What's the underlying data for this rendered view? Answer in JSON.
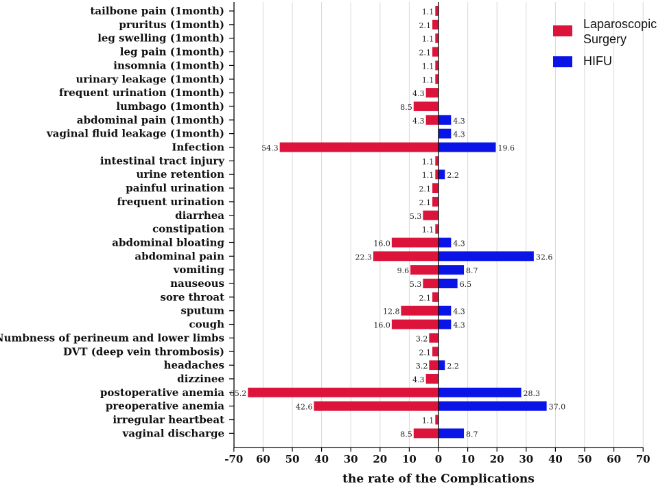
{
  "chart_data": {
    "type": "bar",
    "orientation": "horizontal-diverging",
    "title": "",
    "xlabel": "the rate of the Complications",
    "ylabel": "",
    "xlim": [
      -70,
      70
    ],
    "x_tick_values": [
      -70,
      -60,
      -50,
      -40,
      -30,
      -20,
      -10,
      0,
      10,
      20,
      30,
      40,
      50,
      60,
      70
    ],
    "x_tick_labels": [
      "-70",
      "60",
      "50",
      "40",
      "30",
      "20",
      "10",
      "0",
      "10",
      "20",
      "30",
      "40",
      "50",
      "60",
      "70"
    ],
    "grid": "vertical",
    "legend_position": "top-right",
    "categories": [
      "tailbone pain (1month)",
      "pruritus (1month)",
      "leg swelling (1month)",
      "leg pain (1month)",
      "insomnia (1month)",
      "urinary leakage (1month)",
      "frequent urination (1month)",
      "lumbago (1month)",
      "abdominal pain  (1month)",
      "vaginal fluid leakage (1month)",
      "Infection",
      "intestinal tract injury",
      "urine retention",
      "painful urination",
      "frequent urination",
      "diarrhea",
      "constipation",
      "abdominal bloating",
      "abdominal pain",
      "vomiting",
      "nauseous",
      "sore throat",
      "sputum",
      "cough",
      "Numbness of perineum and lower limbs",
      "DVT (deep vein thrombosis)",
      "headaches",
      "dizzinee",
      "postoperative anemia",
      "preoperative anemia",
      "irregular heartbeat",
      "vaginal discharge"
    ],
    "series": [
      {
        "name": "Laparoscopic Surgery",
        "legend_lines": [
          "Laparoscopic",
          "Surgery"
        ],
        "color": "#dc143c",
        "side": "left",
        "values": [
          1.1,
          2.1,
          1.1,
          2.1,
          1.1,
          1.1,
          4.3,
          8.5,
          4.3,
          null,
          54.3,
          1.1,
          1.1,
          2.1,
          2.1,
          5.3,
          1.1,
          16.0,
          22.3,
          9.6,
          5.3,
          2.1,
          12.8,
          16.0,
          3.2,
          2.1,
          3.2,
          4.3,
          65.2,
          42.6,
          1.1,
          8.5
        ],
        "labels": [
          "1.1",
          "2.1",
          "1.1",
          "2.1",
          "1.1",
          "1.1",
          "4.3",
          "8.5",
          "4.3",
          null,
          "54.3",
          "1.1",
          "1.1",
          "2.1",
          "2.1",
          "5.3",
          "1.1",
          "16.0",
          "22.3",
          "9.6",
          "5.3",
          "2.1",
          "12.8",
          "16.0",
          "3.2",
          "2.1",
          "3.2",
          "4.3",
          "65.2",
          "42.6",
          "1.1",
          "8.5"
        ]
      },
      {
        "name": "HIFU",
        "legend_lines": [
          "HIFU"
        ],
        "color": "#0a14e6",
        "side": "right",
        "values": [
          null,
          null,
          null,
          null,
          null,
          null,
          null,
          null,
          4.3,
          4.3,
          19.6,
          null,
          2.2,
          null,
          null,
          null,
          null,
          4.3,
          32.6,
          8.7,
          6.5,
          null,
          4.3,
          4.3,
          null,
          null,
          2.2,
          null,
          28.3,
          37.0,
          null,
          8.7
        ],
        "labels": [
          null,
          null,
          null,
          null,
          null,
          null,
          null,
          null,
          "4.3",
          "4.3",
          "19.6",
          null,
          "2.2",
          null,
          null,
          null,
          null,
          "4.3",
          "32.6",
          "8.7",
          "6.5",
          null,
          "4.3",
          "4.3",
          null,
          null,
          "2.2",
          null,
          "28.3",
          "37.0",
          null,
          "8.7"
        ]
      }
    ]
  }
}
